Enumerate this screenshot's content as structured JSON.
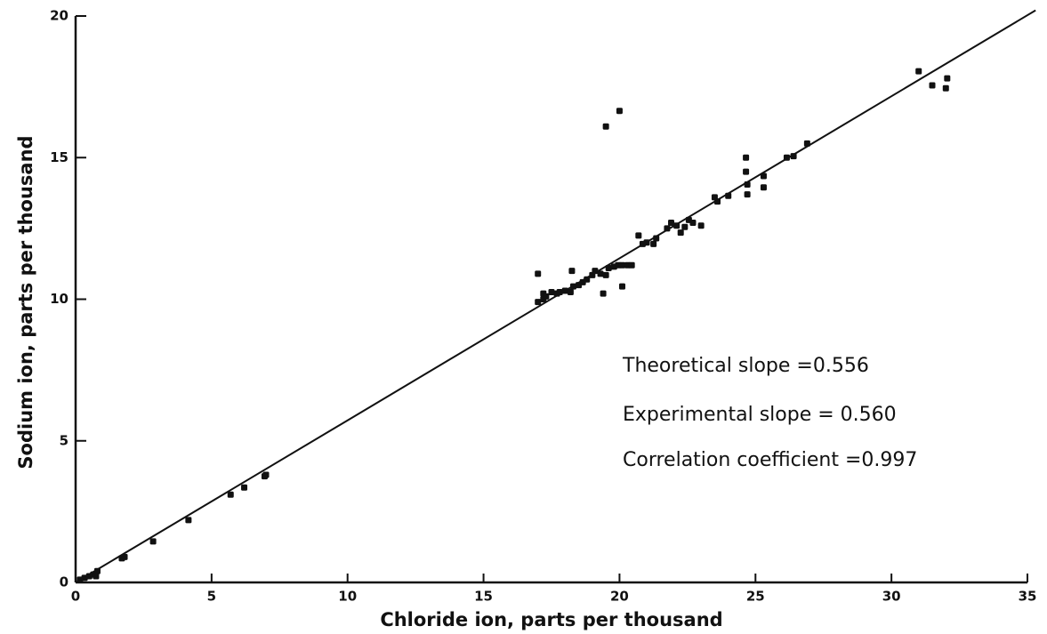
{
  "chart_data": {
    "type": "scatter",
    "xlabel": "Chloride ion, parts per thousand",
    "ylabel": "Sodium ion, parts per thousand",
    "xlim": [
      0,
      35
    ],
    "xticks": [
      0,
      5,
      10,
      15,
      20,
      25,
      30,
      35
    ],
    "ylim": [
      0,
      20
    ],
    "yticks": [
      0,
      5,
      10,
      15,
      20
    ],
    "color": "#111111",
    "annotations": [
      "Theoretical slope =0.556",
      "Experimental slope = 0.560",
      "Correlation coefficient =0.997"
    ],
    "fit_line": {
      "x": [
        0,
        35.3
      ],
      "y": [
        0,
        20.2
      ]
    },
    "x": [
      0.16,
      0.33,
      0.5,
      0.65,
      0.8,
      0.75,
      1.7,
      1.8,
      2.85,
      4.15,
      5.7,
      6.2,
      6.95,
      7.0,
      17.0,
      17.0,
      17.2,
      17.2,
      17.3,
      17.5,
      17.7,
      17.8,
      18.0,
      18.2,
      18.25,
      18.3,
      18.5,
      18.65,
      18.8,
      19.0,
      19.1,
      19.3,
      19.4,
      19.5,
      19.6,
      19.8,
      19.95,
      20.1,
      20.1,
      20.3,
      20.45,
      19.5,
      20.0,
      20.7,
      20.85,
      21.0,
      21.25,
      21.35,
      21.75,
      21.9,
      22.1,
      22.25,
      22.4,
      22.55,
      22.7,
      23.0,
      23.5,
      23.6,
      24.0,
      24.65,
      24.65,
      24.7,
      24.7,
      25.3,
      25.3,
      26.15,
      26.4,
      26.9,
      31.0,
      31.5,
      32.05,
      32.0
    ],
    "values": [
      0.1,
      0.16,
      0.22,
      0.28,
      0.4,
      0.22,
      0.85,
      0.9,
      1.45,
      2.2,
      3.1,
      3.35,
      3.75,
      3.8,
      10.9,
      9.9,
      10.0,
      10.2,
      10.1,
      10.25,
      10.2,
      10.25,
      10.3,
      10.25,
      11.0,
      10.45,
      10.5,
      10.6,
      10.7,
      10.85,
      11.0,
      10.9,
      10.2,
      10.85,
      11.1,
      11.15,
      11.2,
      10.45,
      11.2,
      11.2,
      11.2,
      16.1,
      16.65,
      12.25,
      11.95,
      12.0,
      11.95,
      12.15,
      12.5,
      12.7,
      12.6,
      12.35,
      12.55,
      12.8,
      12.7,
      12.6,
      13.6,
      13.45,
      13.65,
      15.0,
      14.5,
      14.05,
      13.7,
      14.35,
      13.95,
      15.0,
      15.05,
      15.5,
      18.05,
      17.55,
      17.8,
      17.45
    ]
  }
}
